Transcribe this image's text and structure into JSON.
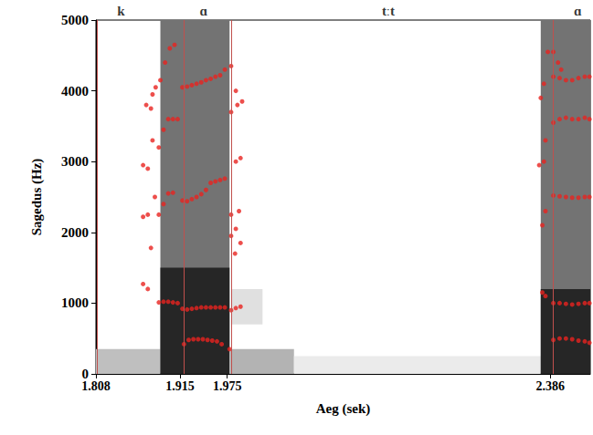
{
  "chart_data": {
    "type": "scatter",
    "x_label": "Aeg (sek)",
    "y_label": "Sagedus (Hz)",
    "xlim": [
      1.808,
      2.437
    ],
    "xticks": [
      1.808,
      1.915,
      1.975,
      2.386
    ],
    "ylim": [
      0,
      5000
    ],
    "yticks": [
      0,
      1000,
      2000,
      3000,
      4000,
      5000
    ],
    "grid": false,
    "color": "#e8231f",
    "marker": "circle",
    "boundaries": [
      1.808,
      1.915,
      1.975,
      2.386
    ],
    "segments": [
      {
        "text": "k",
        "x": 1.84
      },
      {
        "text": "ɑ",
        "x": 1.945
      },
      {
        "text": "tːt",
        "x": 2.18
      },
      {
        "text": "ɑ",
        "x": 2.421
      }
    ],
    "spectrogram_bands": [
      {
        "x": [
          1.808,
          1.89
        ],
        "y": [
          0,
          350
        ],
        "level": 0.25
      },
      {
        "x": [
          1.89,
          1.978
        ],
        "y": [
          0,
          5000
        ],
        "level": 0.55
      },
      {
        "x": [
          1.89,
          1.978
        ],
        "y": [
          0,
          1500
        ],
        "level": 0.85
      },
      {
        "x": [
          1.978,
          2.06
        ],
        "y": [
          0,
          350
        ],
        "level": 0.3
      },
      {
        "x": [
          1.98,
          2.02
        ],
        "y": [
          700,
          1200
        ],
        "level": 0.12
      },
      {
        "x": [
          2.06,
          2.374
        ],
        "y": [
          0,
          250
        ],
        "level": 0.08
      },
      {
        "x": [
          2.374,
          2.437
        ],
        "y": [
          0,
          5000
        ],
        "level": 0.55
      },
      {
        "x": [
          2.374,
          2.437
        ],
        "y": [
          0,
          1200
        ],
        "level": 0.85
      }
    ],
    "x": [
      1.868,
      1.874,
      1.868,
      1.874,
      1.868,
      1.874,
      1.872,
      1.878,
      1.88,
      1.884,
      1.878,
      1.883,
      1.88,
      1.888,
      1.894,
      1.9,
      1.906,
      1.912,
      1.888,
      1.894,
      1.9,
      1.906,
      1.888,
      1.894,
      1.9,
      1.906,
      1.912,
      1.89,
      1.896,
      1.902,
      1.908,
      1.92,
      1.926,
      1.932,
      1.938,
      1.944,
      1.95,
      1.956,
      1.962,
      1.968,
      1.918,
      1.924,
      1.93,
      1.936,
      1.942,
      1.948,
      1.954,
      1.96,
      1.966,
      1.972,
      1.918,
      1.924,
      1.93,
      1.936,
      1.942,
      1.948,
      1.954,
      1.96,
      1.966,
      1.972,
      1.918,
      1.924,
      1.93,
      1.936,
      1.942,
      1.948,
      1.954,
      1.96,
      1.966,
      1.972,
      1.978,
      1.98,
      1.986,
      1.992,
      1.98,
      1.986,
      1.99,
      1.98,
      1.986,
      1.992,
      1.98,
      1.988,
      1.994,
      1.98,
      1.986,
      1.985,
      1.992,
      2.376,
      2.38,
      2.376,
      2.38,
      2.372,
      2.378,
      2.38,
      2.374,
      2.378,
      2.383,
      2.39,
      2.396,
      2.4,
      2.39,
      2.398,
      2.406,
      2.414,
      2.422,
      2.43,
      2.436,
      2.39,
      2.398,
      2.406,
      2.414,
      2.422,
      2.43,
      2.436,
      2.39,
      2.398,
      2.406,
      2.414,
      2.422,
      2.43,
      2.436,
      2.39,
      2.398,
      2.406,
      2.414,
      2.422,
      2.43,
      2.436,
      2.39,
      2.398,
      2.406,
      2.414,
      2.422,
      2.43,
      2.436
    ],
    "values": [
      1270,
      1200,
      2220,
      2250,
      2950,
      2900,
      3800,
      3750,
      3950,
      4050,
      1780,
      2500,
      3300,
      1010,
      1020,
      1020,
      1010,
      1000,
      2250,
      2400,
      2550,
      2560,
      3200,
      3450,
      3600,
      3600,
      3600,
      4150,
      4400,
      4600,
      4650,
      420,
      480,
      490,
      490,
      490,
      480,
      470,
      460,
      420,
      920,
      910,
      920,
      930,
      940,
      940,
      940,
      940,
      940,
      940,
      2450,
      2440,
      2470,
      2500,
      2540,
      2600,
      2700,
      2720,
      2740,
      2760,
      4050,
      4060,
      4080,
      4100,
      4120,
      4150,
      4170,
      4200,
      4220,
      4300,
      350,
      900,
      930,
      950,
      1950,
      2050,
      2300,
      2250,
      3000,
      3050,
      3700,
      3800,
      3850,
      4350,
      4000,
      1700,
      1850,
      1150,
      1100,
      2100,
      2300,
      2950,
      3000,
      3300,
      3900,
      4100,
      4550,
      4550,
      4400,
      4300,
      480,
      500,
      500,
      490,
      470,
      460,
      440,
      1000,
      1000,
      990,
      980,
      990,
      1000,
      1000,
      2520,
      2510,
      2500,
      2490,
      2490,
      2500,
      2500,
      3550,
      3600,
      3620,
      3600,
      3600,
      3620,
      3600,
      4200,
      4180,
      4150,
      4150,
      4180,
      4200,
      4200
    ]
  }
}
